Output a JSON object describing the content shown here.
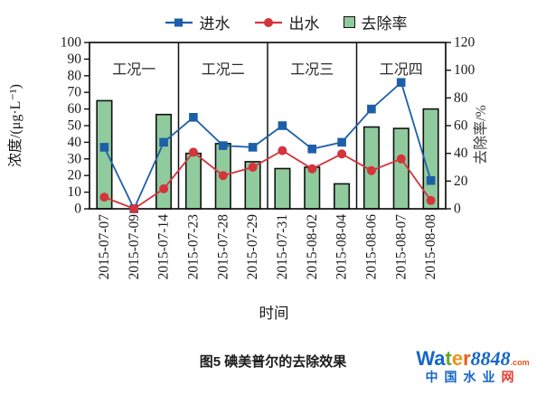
{
  "legend": {
    "items": [
      {
        "label": "进水",
        "marker": "line-square",
        "color": "#1d5fa8"
      },
      {
        "label": "出水",
        "marker": "line-circle",
        "color": "#d4343c"
      },
      {
        "label": "去除率",
        "marker": "bar-swatch",
        "color": "#90cb9e"
      }
    ]
  },
  "chart_data": {
    "type": "bar+line",
    "categories": [
      "2015-07-07",
      "2015-07-09",
      "2015-07-14",
      "2015-07-23",
      "2015-07-28",
      "2015-07-29",
      "2015-07-31",
      "2015-08-02",
      "2015-08-04",
      "2015-08-06",
      "2015-08-07",
      "2015-08-08"
    ],
    "series": [
      {
        "name": "进水",
        "type": "line",
        "marker": "square",
        "axis": "left",
        "color": "#1d5fa8",
        "values": [
          37,
          0,
          40,
          55,
          38,
          37,
          50,
          36,
          40,
          60,
          76,
          17
        ]
      },
      {
        "name": "出水",
        "type": "line",
        "marker": "circle",
        "axis": "left",
        "color": "#d4343c",
        "values": [
          7,
          0,
          12,
          34,
          20,
          25,
          35,
          24,
          33,
          23,
          30,
          5
        ]
      },
      {
        "name": "去除率",
        "type": "bar",
        "axis": "right",
        "color": "#90cb9e",
        "border": "#111111",
        "values": [
          78,
          0,
          68,
          40,
          47,
          34,
          29,
          30,
          18,
          59,
          58,
          72
        ]
      }
    ],
    "left_axis": {
      "label": "浓度/(μg·L⁻¹)",
      "min": 0,
      "max": 100,
      "ticks": [
        0,
        10,
        20,
        30,
        40,
        50,
        60,
        70,
        80,
        90,
        100
      ]
    },
    "right_axis": {
      "label": "去除率/%",
      "min": 0,
      "max": 120,
      "ticks": [
        0,
        20,
        40,
        60,
        80,
        100,
        120
      ]
    },
    "x_axis": {
      "label": "时间"
    },
    "regions": [
      {
        "label": "工况一",
        "span": [
          0,
          2
        ]
      },
      {
        "label": "工况二",
        "span": [
          3,
          5
        ]
      },
      {
        "label": "工况三",
        "span": [
          6,
          8
        ]
      },
      {
        "label": "工况四",
        "span": [
          9,
          11
        ]
      }
    ],
    "grid": false,
    "legend_position": "top"
  },
  "caption": "图5  碘美普尔的去除效果",
  "watermark": {
    "parts": [
      {
        "t": "Wa",
        "c": "#1566c9"
      },
      {
        "t": "t",
        "c": "#66a72f"
      },
      {
        "t": "e",
        "c": "#f0941d"
      },
      {
        "t": "r",
        "c": "#ea5a1e"
      },
      {
        "t": "8848",
        "c": "#1566c9"
      },
      {
        "t": ".com",
        "c": "#e9531b"
      }
    ],
    "line2_main": "中国水业",
    "line2_main_color": "#1566c9",
    "line2_last": "网",
    "line2_last_color": "#e63c30"
  }
}
